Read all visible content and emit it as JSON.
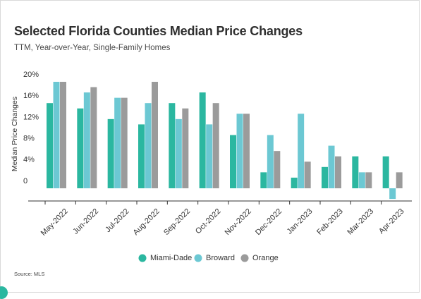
{
  "header": {
    "title": "Selected Florida Counties Median Price Changes",
    "subtitle": "TTM, Year-over-Year, Single-Family Homes"
  },
  "footer": {
    "source": "Source: MLS"
  },
  "chart_data": {
    "type": "bar",
    "title": "Selected Florida Counties Median Price Changes",
    "subtitle": "TTM, Year-over-Year, Single-Family Homes",
    "xlabel": "",
    "ylabel": "Median Price Changes",
    "ylim": [
      -3,
      20
    ],
    "yticks": [
      0,
      4,
      8,
      12,
      16,
      20
    ],
    "ytick_labels": [
      "0",
      "4%",
      "8%",
      "12%",
      "16%",
      "20%"
    ],
    "grid": false,
    "legend_position": "bottom",
    "categories": [
      "May-2022",
      "Jun-2022",
      "Jul-2022",
      "Aug-2022",
      "Sep-2022",
      "Oct-2022",
      "Nov-2022",
      "Dec-2022",
      "Jan-2023",
      "Feb-2023",
      "Mar-2023",
      "Apr-2023"
    ],
    "series": [
      {
        "name": "Miami-Dade",
        "color": "#2bb7a0",
        "values": [
          16,
          15,
          13,
          12,
          16,
          18,
          10,
          3,
          2,
          4,
          6,
          6
        ]
      },
      {
        "name": "Broward",
        "color": "#6cc8d3",
        "values": [
          20,
          18,
          17,
          16,
          13,
          12,
          14,
          10,
          14,
          8,
          3,
          -2
        ]
      },
      {
        "name": "Orange",
        "color": "#9b9b9b",
        "values": [
          20,
          19,
          17,
          20,
          15,
          16,
          14,
          7,
          5,
          6,
          3,
          3
        ]
      }
    ]
  }
}
